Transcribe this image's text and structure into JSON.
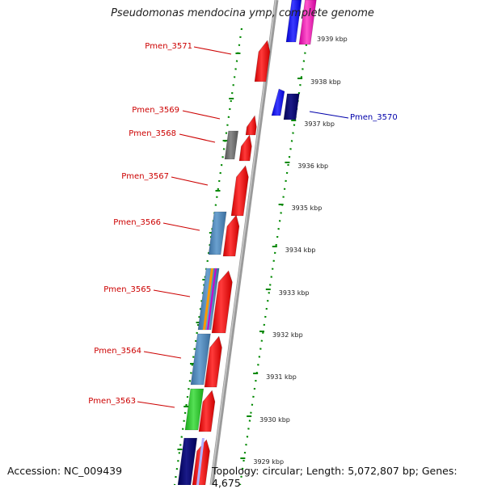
{
  "title": "Pseudomonas mendocina ymp, complete genome",
  "footer": {
    "accession": "Accession: NC_009439",
    "topology": "Topology: circular; Length: 5,072,807 bp; Genes: 4,675"
  },
  "colors": {
    "forward_gene": "#ff0000",
    "reverse_label": "#0000aa",
    "forward_label": "#cc0000",
    "backbone": "#888888",
    "ruler": "#008800"
  },
  "kbp_ticks": [
    "3939 kbp",
    "3938 kbp",
    "3937 kbp",
    "3936 kbp",
    "3935 kbp",
    "3934 kbp",
    "3933 kbp",
    "3932 kbp",
    "3931 kbp",
    "3930 kbp",
    "3929 kbp"
  ],
  "gene_labels": [
    {
      "name": "Pmen_3571",
      "strand": "left"
    },
    {
      "name": "Pmen_3569",
      "strand": "left"
    },
    {
      "name": "Pmen_3568",
      "strand": "left"
    },
    {
      "name": "Pmen_3567",
      "strand": "left"
    },
    {
      "name": "Pmen_3566",
      "strand": "left"
    },
    {
      "name": "Pmen_3565",
      "strand": "left"
    },
    {
      "name": "Pmen_3564",
      "strand": "left"
    },
    {
      "name": "Pmen_3563",
      "strand": "left"
    },
    {
      "name": "Pmen_3570",
      "strand": "right"
    }
  ]
}
